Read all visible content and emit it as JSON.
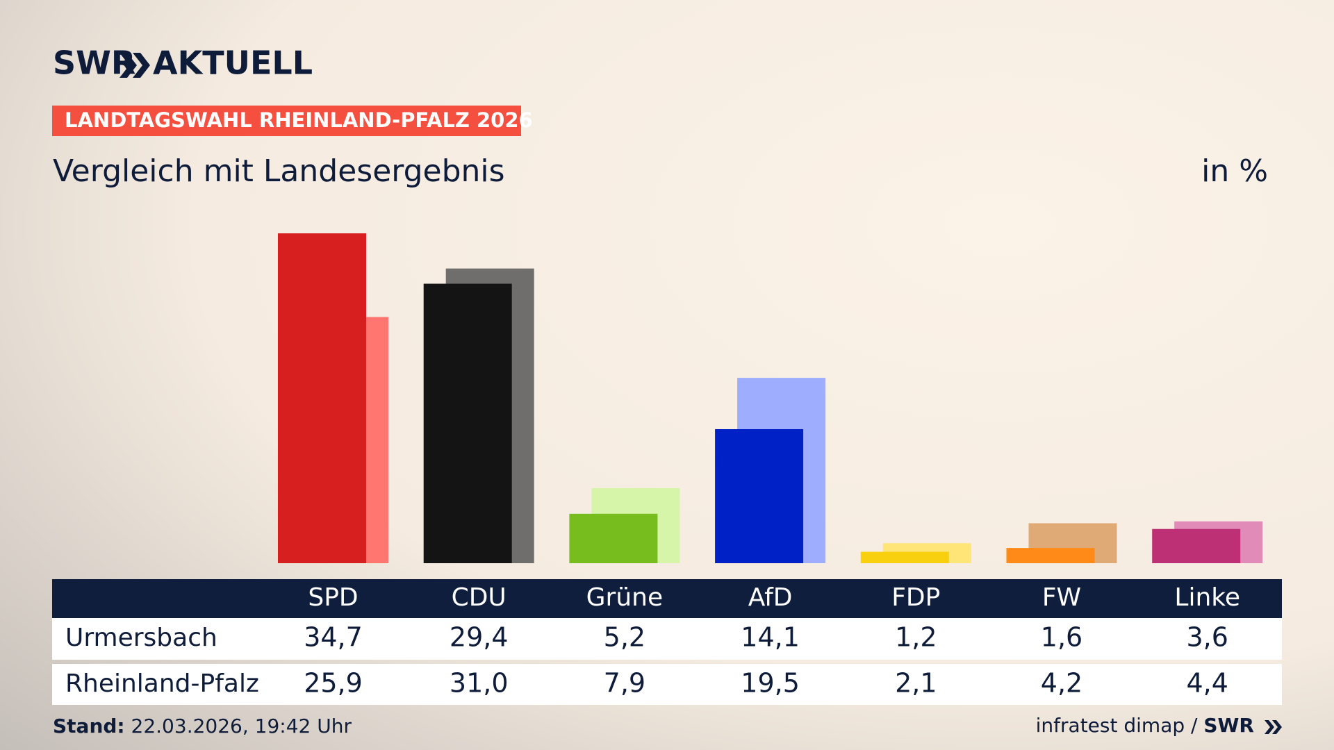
{
  "logo": {
    "brand": "SWR",
    "name": "AKTUELL"
  },
  "badge": "LANDTAGSWAHL RHEINLAND-PFALZ 2026",
  "chart_data": {
    "type": "bar",
    "title": "Vergleich mit Landesergebnis",
    "unit": "in %",
    "categories": [
      "SPD",
      "CDU",
      "Grüne",
      "AfD",
      "FDP",
      "FW",
      "Linke"
    ],
    "series": [
      {
        "name": "Urmersbach",
        "colors": [
          "#d71f1f",
          "#141414",
          "#76bd1d",
          "#0021c6",
          "#f9d00f",
          "#ff8a17",
          "#be3075"
        ],
        "values": [
          34.7,
          29.4,
          5.2,
          14.1,
          1.2,
          1.6,
          3.6
        ],
        "value_labels": [
          "34,7",
          "29,4",
          "5,2",
          "14,1",
          "1,2",
          "1,6",
          "3,6"
        ]
      },
      {
        "name": "Rheinland-Pfalz",
        "colors": [
          "#ff7670",
          "#706e6c",
          "#d6f5a8",
          "#9fadff",
          "#ffe477",
          "#dfaa75",
          "#e08bb8"
        ],
        "values": [
          25.9,
          31.0,
          7.9,
          19.5,
          2.1,
          4.2,
          4.4
        ],
        "value_labels": [
          "25,9",
          "31,0",
          "7,9",
          "19,5",
          "2,1",
          "4,2",
          "4,4"
        ]
      }
    ]
  },
  "footer": {
    "label": "Stand:",
    "date": "22.03.2026, 19:42 Uhr",
    "source": "infratest dimap /",
    "source_brand": "SWR"
  }
}
